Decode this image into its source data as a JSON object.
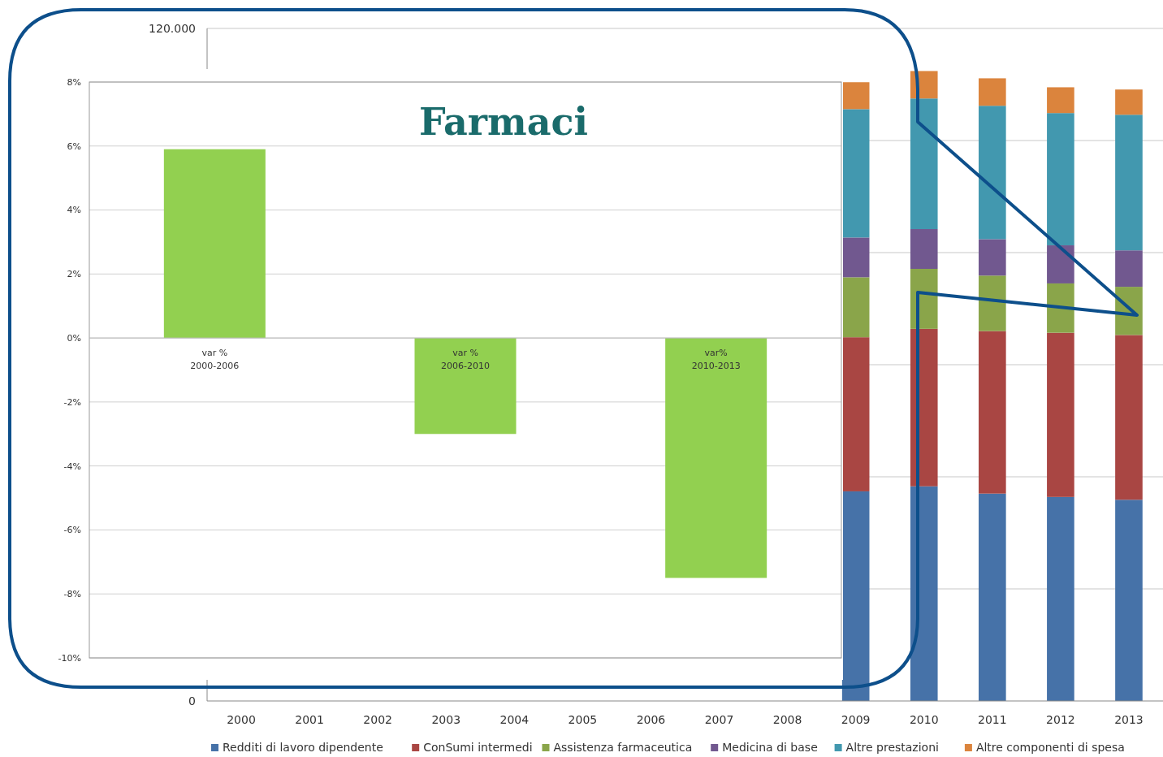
{
  "chart_data": [
    {
      "type": "bar",
      "stacked": true,
      "categories": [
        "2000",
        "2001",
        "2002",
        "2003",
        "2004",
        "2005",
        "2006",
        "2007",
        "2008",
        "2009",
        "2010",
        "2011",
        "2012",
        "2013"
      ],
      "series": [
        {
          "name": "Redditi di lavoro dipendente",
          "color": "#4672a8",
          "values": [
            null,
            null,
            null,
            null,
            null,
            null,
            null,
            null,
            null,
            37400,
            38300,
            37000,
            36400,
            35900
          ]
        },
        {
          "name": "ConSumi intermedi",
          "color": "#a94643",
          "values": [
            null,
            null,
            null,
            null,
            null,
            null,
            null,
            null,
            null,
            27500,
            28100,
            29000,
            29300,
            29400
          ]
        },
        {
          "name": "Assistenza farmaceutica",
          "color": "#8aa54a",
          "values": [
            null,
            null,
            null,
            null,
            null,
            null,
            null,
            null,
            null,
            10700,
            10700,
            9900,
            8800,
            8600
          ]
        },
        {
          "name": "Medicina di base",
          "color": "#71588f",
          "values": [
            null,
            null,
            null,
            null,
            null,
            null,
            null,
            null,
            null,
            7100,
            7100,
            6500,
            6800,
            6500
          ]
        },
        {
          "name": "Altre prestazioni",
          "color": "#4298af",
          "values": [
            null,
            null,
            null,
            null,
            null,
            null,
            null,
            null,
            null,
            22900,
            23300,
            23800,
            23600,
            24200
          ]
        },
        {
          "name": "Altre componenti di spesa",
          "color": "#db843d",
          "values": [
            null,
            null,
            null,
            null,
            null,
            null,
            null,
            null,
            null,
            4800,
            4900,
            4900,
            4600,
            4500
          ]
        }
      ],
      "ylim": [
        0,
        120000
      ],
      "yticks": [
        0,
        {
          "value": 20000,
          "label": null
        },
        {
          "value": 40000,
          "label": null
        },
        {
          "value": 60000,
          "label": null
        },
        {
          "value": 80000,
          "label": null
        },
        {
          "value": 100000,
          "label": null
        },
        {
          "value": 120000,
          "label": "120.000"
        }
      ],
      "grid": "y",
      "legend": "bottom"
    },
    {
      "type": "bar",
      "title": "Farmaci",
      "categories": [
        "var %\n2000-2006",
        "var %\n2006-2010",
        "var%\n2010-2013"
      ],
      "values": [
        5.9,
        -3.0,
        -7.5
      ],
      "color": "#92d050",
      "ylim": [
        -10,
        8
      ],
      "yticks": [
        {
          "value": -10,
          "label": "-10%"
        },
        {
          "value": -8,
          "label": "-8%"
        },
        {
          "value": -6,
          "label": "-6%"
        },
        {
          "value": -4,
          "label": "-4%"
        },
        {
          "value": -2,
          "label": "-2%"
        },
        {
          "value": 0,
          "label": "0%"
        },
        {
          "value": 2,
          "label": "2%"
        },
        {
          "value": 4,
          "label": "4%"
        },
        {
          "value": 6,
          "label": "6%"
        },
        {
          "value": 8,
          "label": "8%"
        }
      ],
      "grid": "y"
    }
  ]
}
